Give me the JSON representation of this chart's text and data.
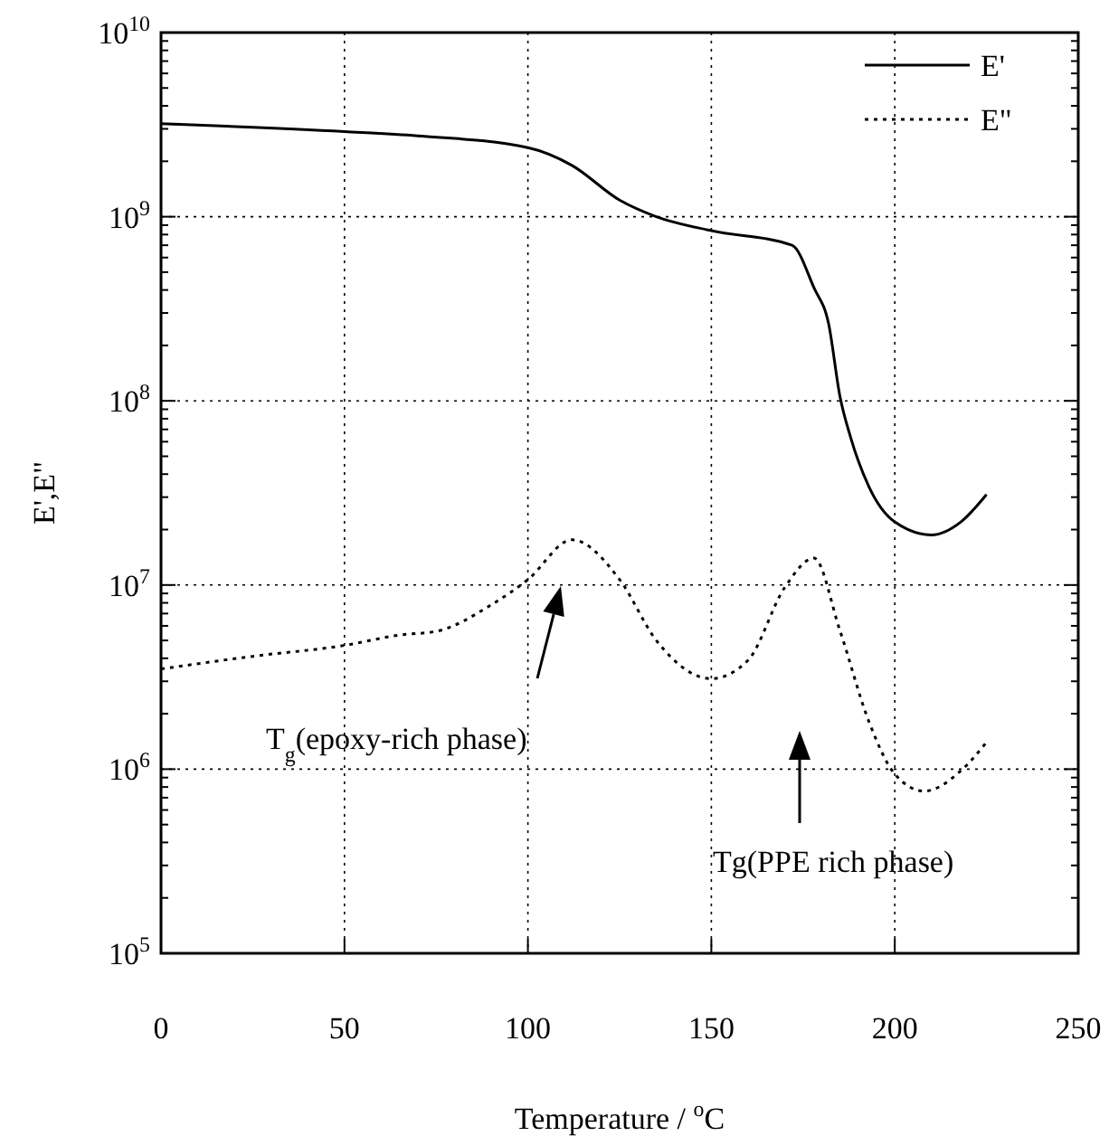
{
  "chart_data": {
    "type": "line",
    "xlabel": "Temperature / $^{o}$C",
    "ylabel": "E',E\"",
    "log": "y",
    "grid": true,
    "legend": "top right",
    "xlim": [
      0,
      250
    ],
    "xticks": [
      0,
      50,
      100,
      150,
      200,
      250
    ],
    "ylim": [
      100000,
      10000000000
    ],
    "yticks": [
      {
        "value": 100000,
        "label": "10$^{5}$"
      },
      {
        "value": 1000000,
        "label": "10$^{6}$"
      },
      {
        "value": 10000000,
        "label": "10$^{7}$"
      },
      {
        "value": 100000000,
        "label": "10$^{8}$"
      },
      {
        "value": 1000000000,
        "label": "10$^{9}$"
      },
      {
        "value": 10000000000,
        "label": "10$^{10}$"
      }
    ],
    "series": [
      {
        "name": "E'",
        "color": "#000000",
        "line_style": "solid",
        "x": [
          0,
          50,
          70,
          100,
          112,
          125,
          135,
          150,
          172,
          178,
          182,
          185,
          188,
          193,
          200,
          210,
          218,
          225
        ],
        "values": [
          3200000000,
          2900000000,
          2750000000,
          2370000000,
          1900000000,
          1230000000,
          1000000000,
          840000000,
          700000000,
          410000000,
          260000000,
          107000000,
          63000000,
          34000000,
          22000000,
          18700000,
          22000000,
          31000000
        ]
      },
      {
        "name": "E\"",
        "color": "#000000",
        "line_style": "dotted",
        "x": [
          0,
          25,
          50,
          65,
          75,
          90,
          100,
          112,
          125,
          135,
          150,
          160,
          170,
          178,
          185,
          193,
          200,
          208,
          218,
          225
        ],
        "values": [
          3500000,
          4100000,
          4700000,
          5350000,
          5600000,
          7800000,
          10700000,
          17600000,
          10700000,
          5000000,
          3100000,
          3900000,
          9700000,
          14000000,
          5700000,
          1800000,
          940000,
          760000,
          980000,
          1400000
        ]
      }
    ],
    "annotations": [
      "T$_{g}$(epoxy-rich phase)",
      "Tg(PPE rich phase)"
    ]
  }
}
